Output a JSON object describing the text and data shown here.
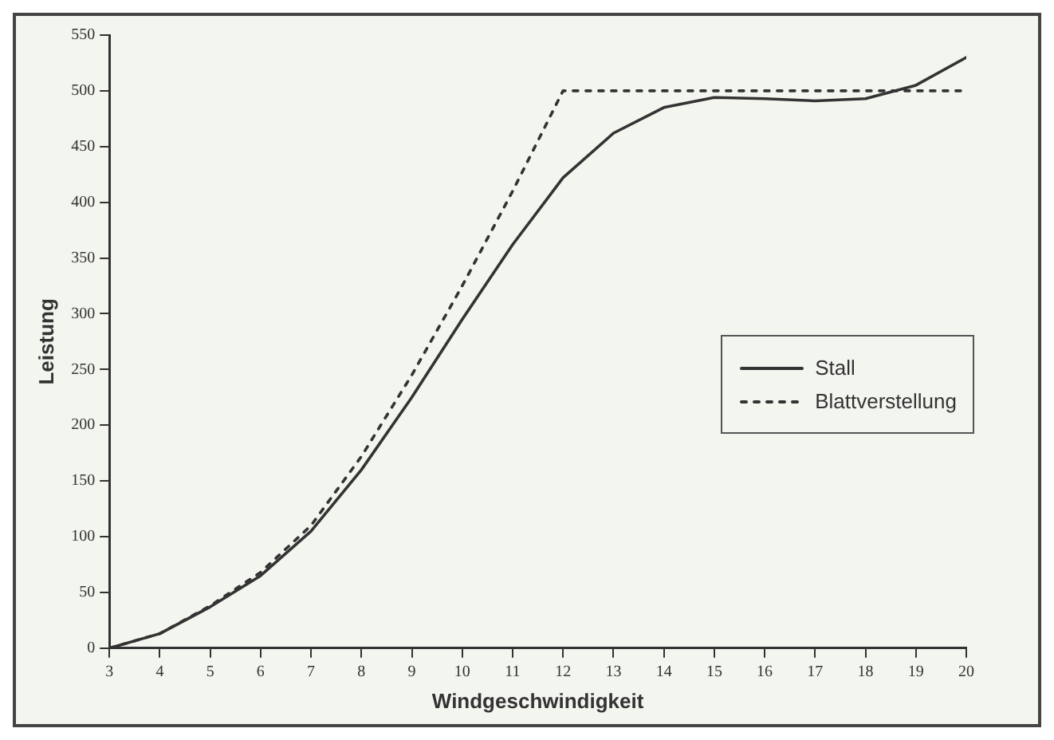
{
  "chart_data": {
    "type": "line",
    "xlabel": "Windgeschwindigkeit",
    "ylabel": "Leistung",
    "x": [
      3,
      4,
      5,
      6,
      7,
      8,
      9,
      10,
      11,
      12,
      13,
      14,
      15,
      16,
      17,
      18,
      19,
      20
    ],
    "series": [
      {
        "name": "Stall",
        "color": "#333333",
        "line_style": "solid",
        "values": [
          0,
          13,
          37,
          65,
          105,
          160,
          225,
          295,
          362,
          422,
          462,
          485,
          494,
          493,
          491,
          493,
          505,
          530
        ]
      },
      {
        "name": "Blattverstellung",
        "color": "#333333",
        "line_style": "dotted",
        "values": [
          0,
          13,
          38,
          68,
          110,
          172,
          245,
          325,
          410,
          500,
          500,
          500,
          500,
          500,
          500,
          500,
          500,
          500
        ]
      }
    ],
    "xlim": [
      3,
      20
    ],
    "xticks": [
      3,
      4,
      5,
      6,
      7,
      8,
      9,
      10,
      11,
      12,
      13,
      14,
      15,
      16,
      17,
      18,
      19,
      20
    ],
    "ylim": [
      0,
      550
    ],
    "yticks": [
      0,
      50,
      100,
      150,
      200,
      250,
      300,
      350,
      400,
      450,
      500,
      550
    ],
    "grid": false,
    "legend": "right",
    "marker": "none"
  }
}
